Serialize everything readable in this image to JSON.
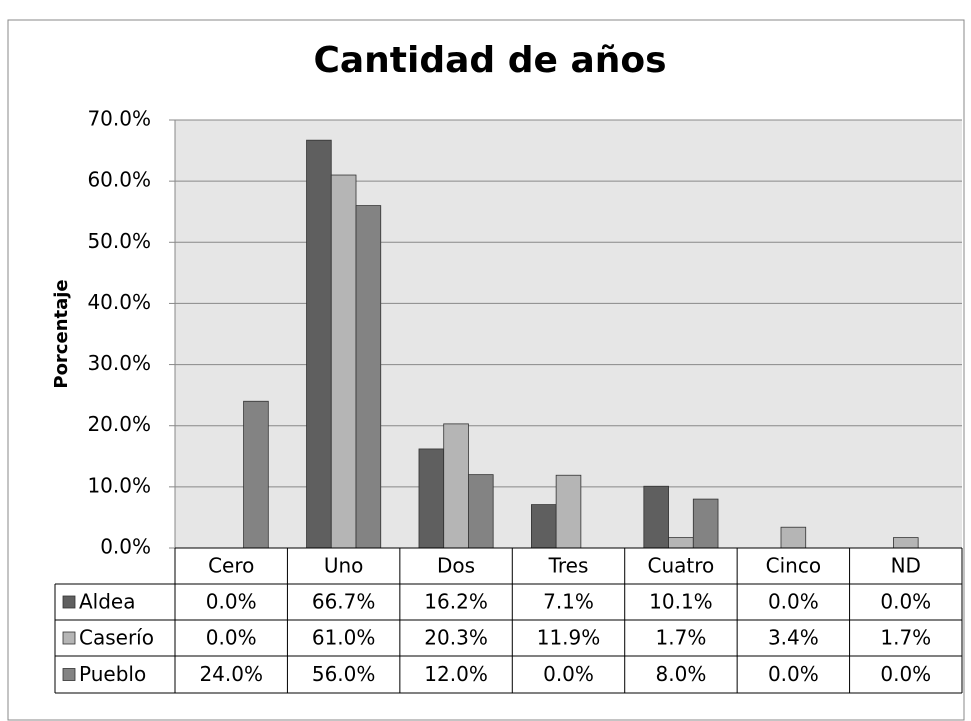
{
  "chart_data": {
    "type": "bar",
    "title": "Cantidad de años",
    "y_label": "Porcentaje",
    "categories": [
      "Cero",
      "Uno",
      "Dos",
      "Tres",
      "Cuatro",
      "Cinco",
      "ND"
    ],
    "series": [
      {
        "name": "Aldea",
        "color": "#5f5f5f",
        "values": [
          0.0,
          66.7,
          16.2,
          7.1,
          10.1,
          0.0,
          0.0
        ],
        "value_labels": [
          "0.0%",
          "66.7%",
          "16.2%",
          "7.1%",
          "10.1%",
          "0.0%",
          "0.0%"
        ]
      },
      {
        "name": "Caserío",
        "color": "#b5b5b5",
        "values": [
          0.0,
          61.0,
          20.3,
          11.9,
          1.7,
          3.4,
          1.7
        ],
        "value_labels": [
          "0.0%",
          "61.0%",
          "20.3%",
          "11.9%",
          "1.7%",
          "3.4%",
          "1.7%"
        ]
      },
      {
        "name": "Pueblo",
        "color": "#838383",
        "values": [
          24.0,
          56.0,
          12.0,
          0.0,
          8.0,
          0.0,
          0.0
        ],
        "value_labels": [
          "24.0%",
          "56.0%",
          "12.0%",
          "0.0%",
          "8.0%",
          "0.0%",
          "0.0%"
        ]
      }
    ],
    "ylim": [
      0,
      70
    ],
    "yticks": [
      {
        "value": 0,
        "label": "0.0%"
      },
      {
        "value": 10,
        "label": "10.0%"
      },
      {
        "value": 20,
        "label": "20.0%"
      },
      {
        "value": 30,
        "label": "30.0%"
      },
      {
        "value": 40,
        "label": "40.0%"
      },
      {
        "value": 50,
        "label": "50.0%"
      },
      {
        "value": 60,
        "label": "60.0%"
      },
      {
        "value": 70,
        "label": "70.0%"
      }
    ],
    "grid": true
  }
}
